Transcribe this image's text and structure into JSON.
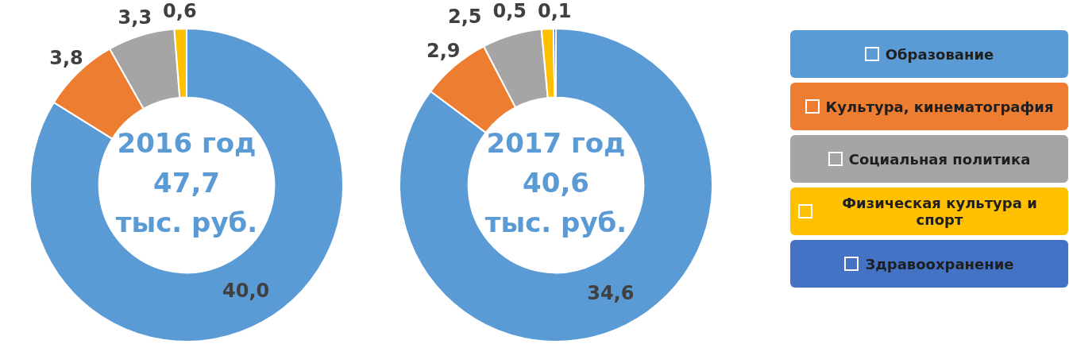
{
  "chart_data": [
    {
      "type": "donut",
      "title": "2016 год",
      "subtitle": "47,7 тыс. руб.",
      "categories": [
        null,
        null,
        null,
        null
      ],
      "values": [
        40.0,
        3.8,
        3.3,
        0.6
      ],
      "value_labels": [
        "40,0",
        "3,8",
        "3,3",
        "0,6"
      ],
      "colors": [
        "#5b9bd5",
        "#ed7d31",
        "#a5a5a5",
        "#ffc000"
      ]
    },
    {
      "type": "donut",
      "title": "2017 год",
      "subtitle": "40,6 тыс. руб.",
      "categories": [
        "Образование",
        "Культура, кинематография",
        "Социальная политика",
        "Физическая культура и спорт",
        "Здравоохранение"
      ],
      "values": [
        34.6,
        2.9,
        2.5,
        0.5,
        0.1
      ],
      "value_labels": [
        "34,6",
        "2,9",
        "2,5",
        "0,5",
        "0,1"
      ],
      "colors": [
        "#5b9bd5",
        "#ed7d31",
        "#a5a5a5",
        "#ffc000",
        "#4472c4"
      ],
      "legend": "right"
    }
  ]
}
